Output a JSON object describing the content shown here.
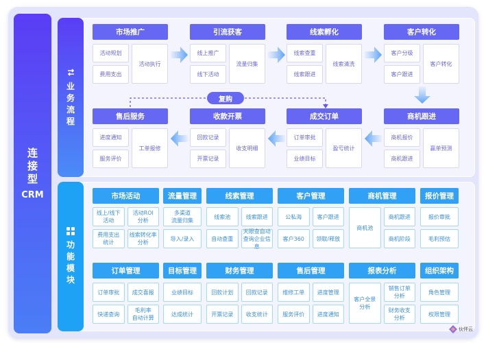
{
  "crm_label": {
    "title": "连接型",
    "sub": "CRM"
  },
  "flow": {
    "label": "业务流程",
    "repurchase": "复购",
    "stages": [
      {
        "title": "市场推广",
        "items": [
          "活动规划",
          "费用支出",
          "活动执行"
        ]
      },
      {
        "title": "引流获客",
        "items": [
          "线上推广",
          "线下活动",
          "流量归集"
        ]
      },
      {
        "title": "线索孵化",
        "items": [
          "线索查重",
          "线索跟进",
          "线索清洗"
        ]
      },
      {
        "title": "客户转化",
        "items": [
          "客户分级",
          "客户跟进",
          "客户转化"
        ]
      },
      {
        "title": "商机跟进",
        "items": [
          "商机报价",
          "商机跟进",
          "赢单预测"
        ]
      },
      {
        "title": "成交订单",
        "items": [
          "订单审批",
          "业绩目标",
          "盈亏统计"
        ]
      },
      {
        "title": "收款开票",
        "items": [
          "回款记录",
          "开票记录",
          "收支明细"
        ]
      },
      {
        "title": "售后服务",
        "items": [
          "进度通知",
          "服务评价",
          "工单报修"
        ]
      }
    ]
  },
  "modules": {
    "label": "功能模块",
    "list": [
      {
        "title": "市场活动",
        "items": [
          "线上/线下\n活动",
          "活动ROI\n分析",
          "费用支出\n统计",
          "线索转化率\n分析"
        ]
      },
      {
        "title": "流量管理",
        "items": [
          "多渠道\n流量归集",
          "导入/录入"
        ]
      },
      {
        "title": "线索管理",
        "items": [
          "线索池",
          "线索跟进",
          "自动查重",
          "天眼查自动\n查询企业信息"
        ]
      },
      {
        "title": "客户管理",
        "items": [
          "公私海",
          "客户跟进",
          "客户360",
          "领取/释放"
        ]
      },
      {
        "title": "商机管理",
        "items": [
          "商机池",
          "商机跟进",
          "商机阶段"
        ]
      },
      {
        "title": "报价管理",
        "items": [
          "报价审批",
          "毛利预估"
        ]
      },
      {
        "title": "订单管理",
        "items": [
          "订单审批",
          "成交喜报",
          "快递查询",
          "毛利率\n自动计算"
        ]
      },
      {
        "title": "目标管理",
        "items": [
          "业绩目标",
          "达成统计"
        ]
      },
      {
        "title": "财务管理",
        "items": [
          "回款计划",
          "回款记录",
          "开票记录",
          "收支统计"
        ]
      },
      {
        "title": "售后管理",
        "items": [
          "维修工单",
          "进度管理",
          "服务评价",
          "进度通知"
        ]
      },
      {
        "title": "报表分析",
        "items": [
          "客户全景\n分析",
          "销售订单\n分析",
          "财务收支\n分析",
          "业绩达成\n分析"
        ]
      },
      {
        "title": "组织架构",
        "items": [
          "角色管理",
          "权限管理"
        ]
      }
    ]
  },
  "brand": {
    "logo_text": "伙伴云"
  },
  "colors": {
    "flow_accent": "#6667f2",
    "module_accent": "#31a1f5"
  }
}
